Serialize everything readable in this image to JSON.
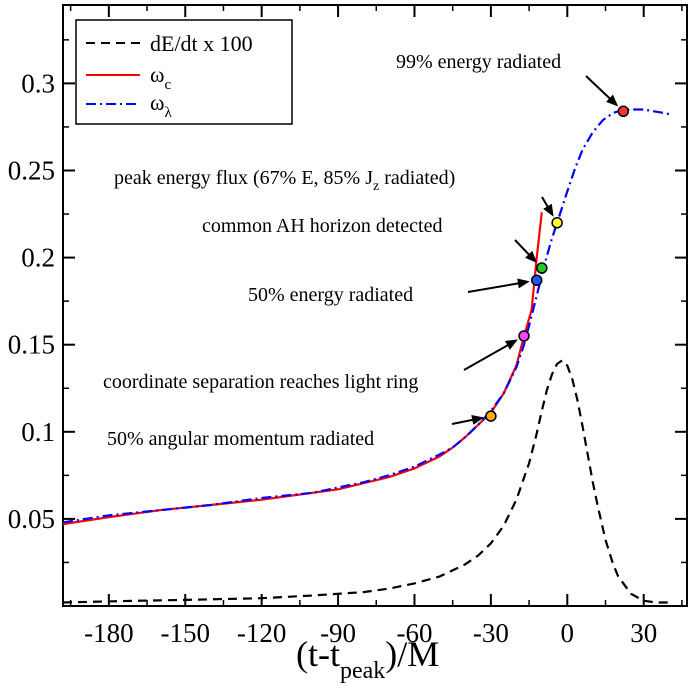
{
  "chart_data": {
    "type": "line",
    "title": "",
    "xlabel": "(t-t",
    "xlabel_sub": "peak",
    "xlabel_tail": ")/M",
    "ylabel": "",
    "xlim": [
      -198,
      47
    ],
    "ylim": [
      0.0,
      0.345
    ],
    "grid": false,
    "legend_placement": "top-left",
    "x_ticks": [
      -180,
      -150,
      -120,
      -90,
      -60,
      -30,
      0,
      30
    ],
    "x_tick_labels": [
      "-180",
      "-150",
      "-120",
      "-90",
      "-60",
      "-30",
      "0",
      "30"
    ],
    "y_ticks": [
      0.05,
      0.1,
      0.15,
      0.2,
      0.25,
      0.3
    ],
    "y_tick_labels": [
      "0.05",
      "0.1",
      "0.15",
      "0.2",
      "0.25",
      "0.3"
    ],
    "series": [
      {
        "name": "dE/dt x 100",
        "color": "#000000",
        "dash": "dashed",
        "x": [
          -198,
          -170,
          -150,
          -120,
          -100,
          -80,
          -70,
          -60,
          -50,
          -40,
          -35,
          -30,
          -25,
          -20,
          -15,
          -12,
          -10,
          -8,
          -6,
          -4,
          -2,
          0,
          2,
          4,
          6,
          8,
          10,
          12,
          15,
          18,
          20,
          25,
          30,
          35,
          40
        ],
        "y": [
          0.002,
          0.003,
          0.0035,
          0.0045,
          0.006,
          0.008,
          0.01,
          0.013,
          0.017,
          0.024,
          0.029,
          0.036,
          0.046,
          0.061,
          0.082,
          0.099,
          0.112,
          0.124,
          0.133,
          0.139,
          0.141,
          0.138,
          0.13,
          0.118,
          0.103,
          0.087,
          0.071,
          0.057,
          0.038,
          0.024,
          0.017,
          0.007,
          0.003,
          0.002,
          0.002
        ]
      },
      {
        "name": "ω_c",
        "label_main": "ω",
        "label_sub": "c",
        "color": "#ff0000",
        "dash": "solid",
        "x": [
          -198,
          -180,
          -160,
          -140,
          -120,
          -100,
          -90,
          -80,
          -70,
          -60,
          -50,
          -45,
          -40,
          -35,
          -30,
          -25,
          -20,
          -17,
          -15,
          -14,
          -13,
          -12,
          -11,
          -10
        ],
        "y": [
          0.047,
          0.051,
          0.055,
          0.058,
          0.061,
          0.065,
          0.067,
          0.0705,
          0.074,
          0.079,
          0.086,
          0.091,
          0.097,
          0.104,
          0.111,
          0.122,
          0.138,
          0.155,
          0.165,
          0.17,
          0.185,
          0.2,
          0.213,
          0.226
        ]
      },
      {
        "name": "ω_λ",
        "label_main": "ω",
        "label_sub": "λ",
        "color": "#0000ff",
        "dash": "dashdot",
        "x": [
          -198,
          -180,
          -160,
          -140,
          -120,
          -100,
          -90,
          -80,
          -70,
          -60,
          -50,
          -45,
          -40,
          -35,
          -30,
          -25,
          -20,
          -17,
          -15,
          -12,
          -10,
          -8,
          -6,
          -4,
          -2,
          0,
          3,
          6,
          10,
          14,
          18,
          22,
          26,
          30,
          34,
          38,
          41
        ],
        "y": [
          0.048,
          0.052,
          0.055,
          0.058,
          0.062,
          0.065,
          0.068,
          0.071,
          0.075,
          0.08,
          0.087,
          0.091,
          0.097,
          0.104,
          0.112,
          0.122,
          0.137,
          0.15,
          0.161,
          0.178,
          0.19,
          0.201,
          0.211,
          0.22,
          0.229,
          0.238,
          0.251,
          0.262,
          0.272,
          0.279,
          0.283,
          0.285,
          0.285,
          0.285,
          0.284,
          0.283,
          0.282
        ]
      }
    ],
    "points": [
      {
        "x": 22,
        "y": 0.284,
        "color": "#ff3333",
        "label": "99% energy radiated"
      },
      {
        "x": -4,
        "y": 0.22,
        "color": "#ffff33",
        "label": "peak energy flux (67% E, 85% J",
        "label_sub": "z",
        "label_tail": " radiated)"
      },
      {
        "x": -10,
        "y": 0.194,
        "color": "#22cc22",
        "label": "common AH horizon detected"
      },
      {
        "x": -12,
        "y": 0.187,
        "color": "#2255ff",
        "label": "50% energy radiated"
      },
      {
        "x": -17,
        "y": 0.155,
        "color": "#ff44ff",
        "label": "coordinate separation reaches light ring"
      },
      {
        "x": -30,
        "y": 0.109,
        "color": "#ffaa00",
        "label": "50% angular momentum radiated"
      }
    ]
  }
}
